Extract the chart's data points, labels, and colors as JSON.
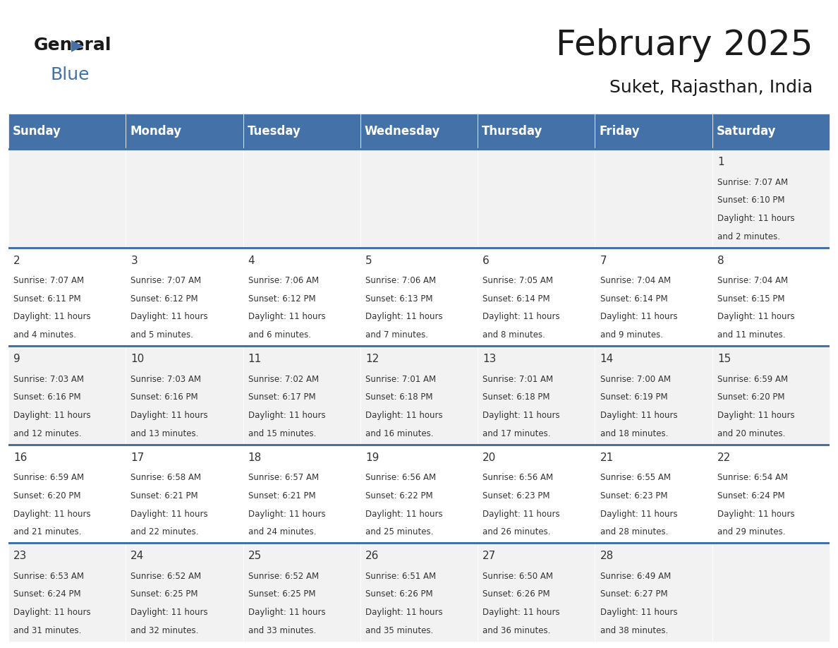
{
  "title": "February 2025",
  "subtitle": "Suket, Rajasthan, India",
  "header_color": "#4472a8",
  "header_text_color": "#ffffff",
  "day_names": [
    "Sunday",
    "Monday",
    "Tuesday",
    "Wednesday",
    "Thursday",
    "Friday",
    "Saturday"
  ],
  "bg_color": "#ffffff",
  "cell_bg_odd": "#f2f2f2",
  "cell_bg_even": "#ffffff",
  "divider_color": "#4472a8",
  "text_color": "#333333",
  "num_color": "#333333",
  "days": [
    {
      "day": 1,
      "col": 6,
      "row": 0,
      "sunrise": "7:07 AM",
      "sunset": "6:10 PM",
      "daylight": "11 hours and 2 minutes"
    },
    {
      "day": 2,
      "col": 0,
      "row": 1,
      "sunrise": "7:07 AM",
      "sunset": "6:11 PM",
      "daylight": "11 hours and 4 minutes"
    },
    {
      "day": 3,
      "col": 1,
      "row": 1,
      "sunrise": "7:07 AM",
      "sunset": "6:12 PM",
      "daylight": "11 hours and 5 minutes"
    },
    {
      "day": 4,
      "col": 2,
      "row": 1,
      "sunrise": "7:06 AM",
      "sunset": "6:12 PM",
      "daylight": "11 hours and 6 minutes"
    },
    {
      "day": 5,
      "col": 3,
      "row": 1,
      "sunrise": "7:06 AM",
      "sunset": "6:13 PM",
      "daylight": "11 hours and 7 minutes"
    },
    {
      "day": 6,
      "col": 4,
      "row": 1,
      "sunrise": "7:05 AM",
      "sunset": "6:14 PM",
      "daylight": "11 hours and 8 minutes"
    },
    {
      "day": 7,
      "col": 5,
      "row": 1,
      "sunrise": "7:04 AM",
      "sunset": "6:14 PM",
      "daylight": "11 hours and 9 minutes"
    },
    {
      "day": 8,
      "col": 6,
      "row": 1,
      "sunrise": "7:04 AM",
      "sunset": "6:15 PM",
      "daylight": "11 hours and 11 minutes"
    },
    {
      "day": 9,
      "col": 0,
      "row": 2,
      "sunrise": "7:03 AM",
      "sunset": "6:16 PM",
      "daylight": "11 hours and 12 minutes"
    },
    {
      "day": 10,
      "col": 1,
      "row": 2,
      "sunrise": "7:03 AM",
      "sunset": "6:16 PM",
      "daylight": "11 hours and 13 minutes"
    },
    {
      "day": 11,
      "col": 2,
      "row": 2,
      "sunrise": "7:02 AM",
      "sunset": "6:17 PM",
      "daylight": "11 hours and 15 minutes"
    },
    {
      "day": 12,
      "col": 3,
      "row": 2,
      "sunrise": "7:01 AM",
      "sunset": "6:18 PM",
      "daylight": "11 hours and 16 minutes"
    },
    {
      "day": 13,
      "col": 4,
      "row": 2,
      "sunrise": "7:01 AM",
      "sunset": "6:18 PM",
      "daylight": "11 hours and 17 minutes"
    },
    {
      "day": 14,
      "col": 5,
      "row": 2,
      "sunrise": "7:00 AM",
      "sunset": "6:19 PM",
      "daylight": "11 hours and 18 minutes"
    },
    {
      "day": 15,
      "col": 6,
      "row": 2,
      "sunrise": "6:59 AM",
      "sunset": "6:20 PM",
      "daylight": "11 hours and 20 minutes"
    },
    {
      "day": 16,
      "col": 0,
      "row": 3,
      "sunrise": "6:59 AM",
      "sunset": "6:20 PM",
      "daylight": "11 hours and 21 minutes"
    },
    {
      "day": 17,
      "col": 1,
      "row": 3,
      "sunrise": "6:58 AM",
      "sunset": "6:21 PM",
      "daylight": "11 hours and 22 minutes"
    },
    {
      "day": 18,
      "col": 2,
      "row": 3,
      "sunrise": "6:57 AM",
      "sunset": "6:21 PM",
      "daylight": "11 hours and 24 minutes"
    },
    {
      "day": 19,
      "col": 3,
      "row": 3,
      "sunrise": "6:56 AM",
      "sunset": "6:22 PM",
      "daylight": "11 hours and 25 minutes"
    },
    {
      "day": 20,
      "col": 4,
      "row": 3,
      "sunrise": "6:56 AM",
      "sunset": "6:23 PM",
      "daylight": "11 hours and 26 minutes"
    },
    {
      "day": 21,
      "col": 5,
      "row": 3,
      "sunrise": "6:55 AM",
      "sunset": "6:23 PM",
      "daylight": "11 hours and 28 minutes"
    },
    {
      "day": 22,
      "col": 6,
      "row": 3,
      "sunrise": "6:54 AM",
      "sunset": "6:24 PM",
      "daylight": "11 hours and 29 minutes"
    },
    {
      "day": 23,
      "col": 0,
      "row": 4,
      "sunrise": "6:53 AM",
      "sunset": "6:24 PM",
      "daylight": "11 hours and 31 minutes"
    },
    {
      "day": 24,
      "col": 1,
      "row": 4,
      "sunrise": "6:52 AM",
      "sunset": "6:25 PM",
      "daylight": "11 hours and 32 minutes"
    },
    {
      "day": 25,
      "col": 2,
      "row": 4,
      "sunrise": "6:52 AM",
      "sunset": "6:25 PM",
      "daylight": "11 hours and 33 minutes"
    },
    {
      "day": 26,
      "col": 3,
      "row": 4,
      "sunrise": "6:51 AM",
      "sunset": "6:26 PM",
      "daylight": "11 hours and 35 minutes"
    },
    {
      "day": 27,
      "col": 4,
      "row": 4,
      "sunrise": "6:50 AM",
      "sunset": "6:26 PM",
      "daylight": "11 hours and 36 minutes"
    },
    {
      "day": 28,
      "col": 5,
      "row": 4,
      "sunrise": "6:49 AM",
      "sunset": "6:27 PM",
      "daylight": "11 hours and 38 minutes"
    }
  ]
}
